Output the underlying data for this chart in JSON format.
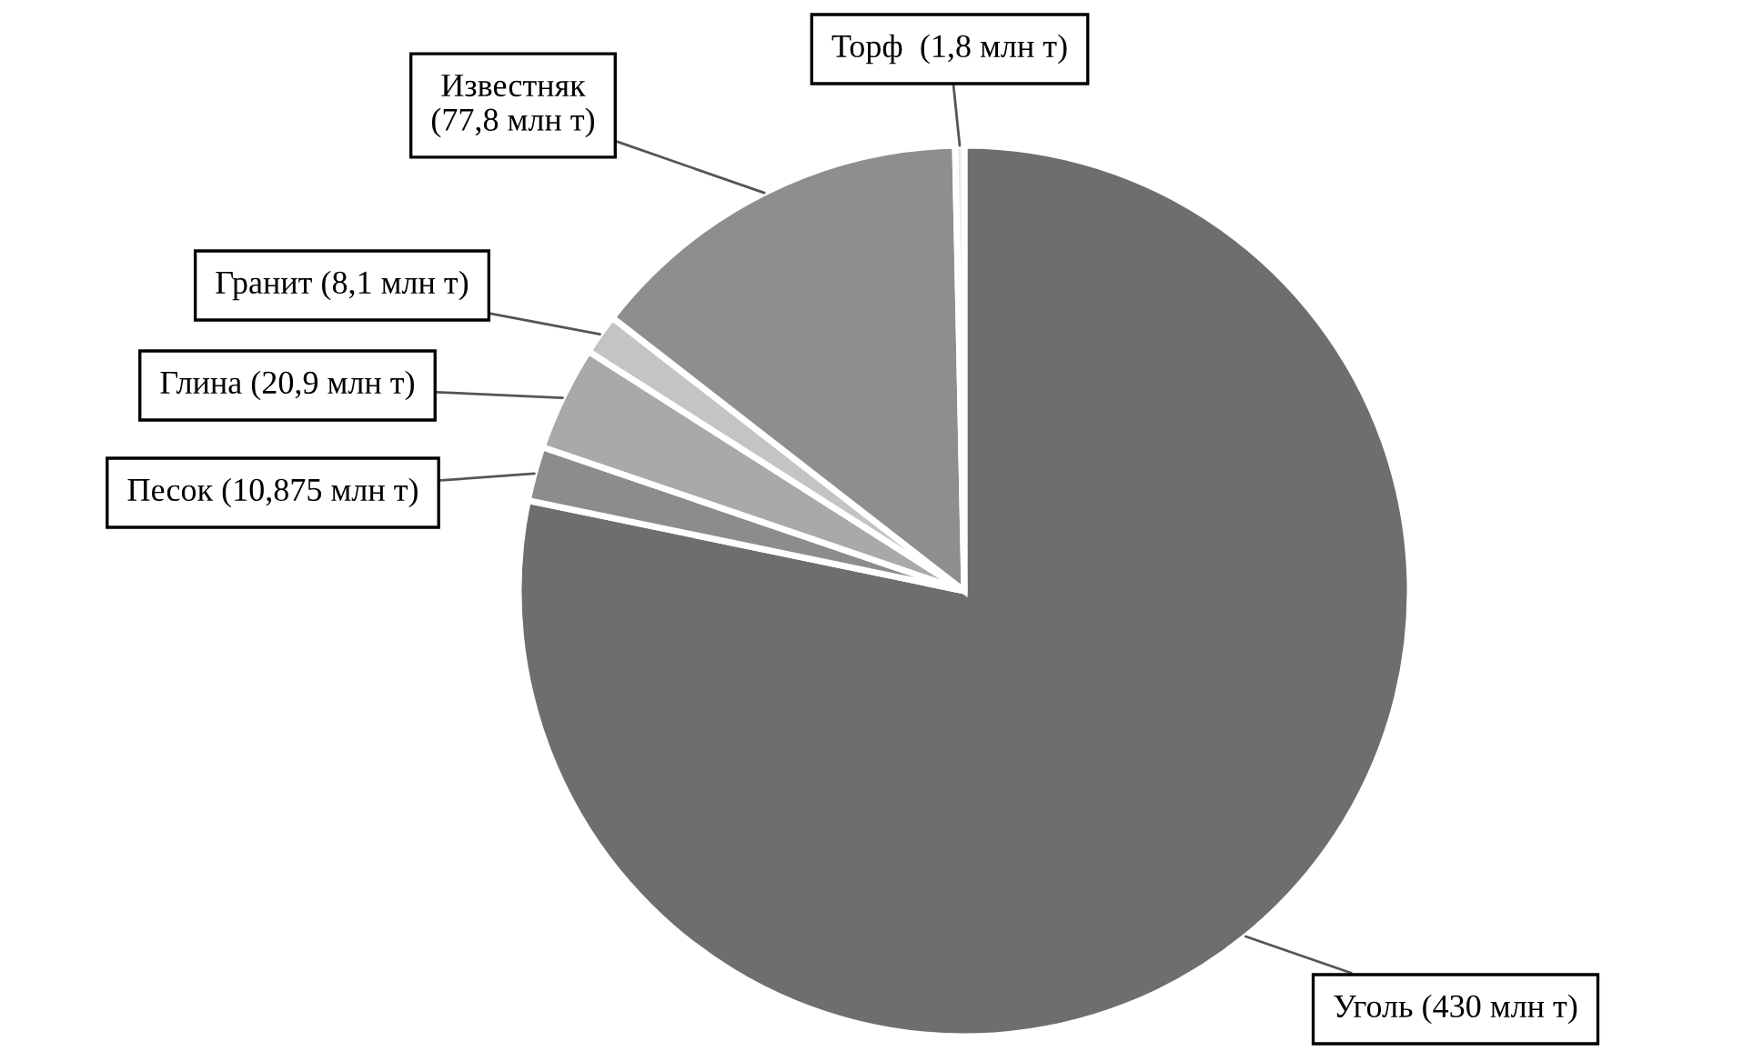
{
  "chart_data": {
    "type": "pie",
    "categories": [
      "Уголь (430 млн т)",
      "Песок (10,875 млн т)",
      "Глина (20,9 млн т)",
      "Гранит (8,1 млн т)",
      "Известняк\n(77,8 млн т)",
      "Торф  (1,8 млн т)"
    ],
    "values": [
      430,
      10.875,
      20.9,
      8.1,
      77.8,
      1.8
    ],
    "colors": [
      "#6e6e6e",
      "#8c8c8c",
      "#a9a9a9",
      "#c4c4c4",
      "#8e8e8e",
      "#e8e8e8"
    ]
  }
}
